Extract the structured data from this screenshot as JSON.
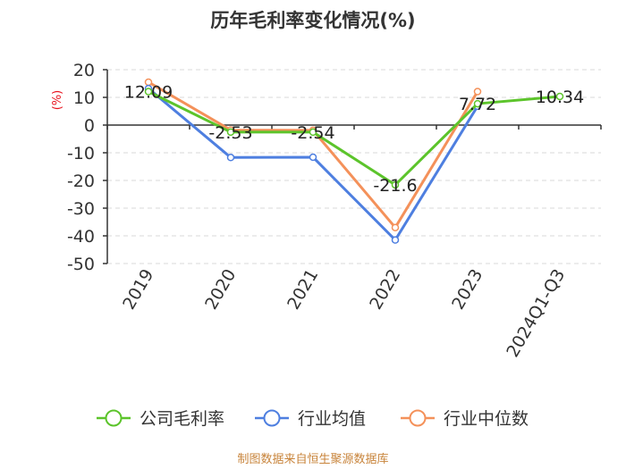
{
  "chart_data": {
    "type": "line",
    "title": "历年毛利率变化情况(%)",
    "ylabel": "(%)",
    "xlabel": "",
    "categories": [
      "2019",
      "2020",
      "2021",
      "2022",
      "2023",
      "2024Q1-Q3"
    ],
    "ylim": [
      -50,
      20
    ],
    "yticks": [
      20,
      10,
      0,
      -10,
      -20,
      -30,
      -40,
      -50
    ],
    "grid": true,
    "legend_position": "bottom",
    "series": [
      {
        "name": "公司毛利率",
        "color": "#5cc42b",
        "values": [
          12.09,
          -2.53,
          -2.54,
          -21.6,
          7.72,
          10.34
        ],
        "labels": [
          "12.09",
          "-2.53",
          "-2.54",
          "-21.6",
          "7.72",
          "10.34"
        ]
      },
      {
        "name": "行业均值",
        "color": "#4e7fe0",
        "values": [
          13.2,
          -11.7,
          -11.6,
          -41.5,
          6.8,
          null
        ]
      },
      {
        "name": "行业中位数",
        "color": "#f4915a",
        "values": [
          15.5,
          -1.8,
          -1.9,
          -37.0,
          12.1,
          null
        ]
      }
    ]
  },
  "source": "制图数据来自恒生聚源数据库"
}
